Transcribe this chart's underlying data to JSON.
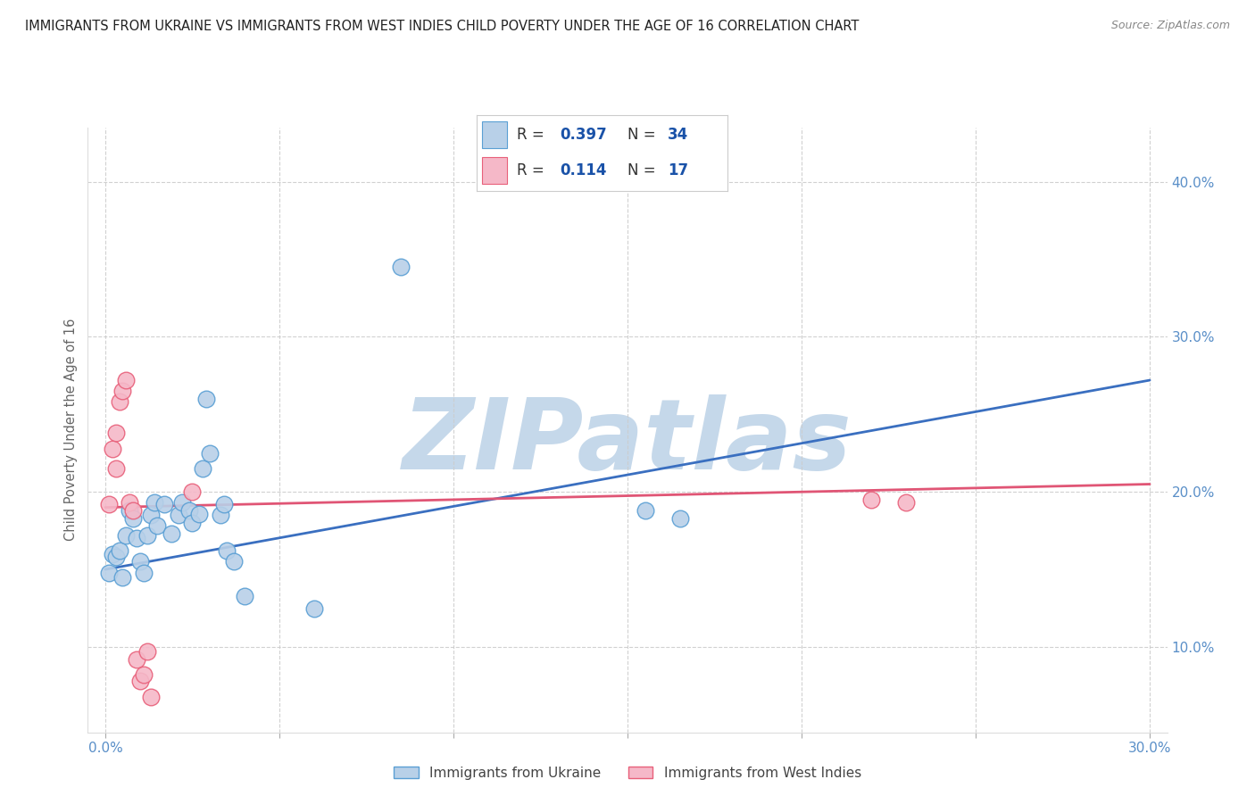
{
  "title": "IMMIGRANTS FROM UKRAINE VS IMMIGRANTS FROM WEST INDIES CHILD POVERTY UNDER THE AGE OF 16 CORRELATION CHART",
  "source": "Source: ZipAtlas.com",
  "ylabel_label": "Child Poverty Under the Age of 16",
  "ukraine_R": 0.397,
  "ukraine_N": 34,
  "westindies_R": 0.114,
  "westindies_N": 17,
  "ukraine_color": "#b8d0e8",
  "westindies_color": "#f5b8c8",
  "ukraine_edge_color": "#5a9fd4",
  "westindies_edge_color": "#e8607a",
  "ukraine_line_color": "#3a6fc0",
  "westindies_line_color": "#e05575",
  "ukraine_scatter": [
    [
      0.001,
      0.148
    ],
    [
      0.002,
      0.16
    ],
    [
      0.003,
      0.158
    ],
    [
      0.004,
      0.162
    ],
    [
      0.005,
      0.145
    ],
    [
      0.006,
      0.172
    ],
    [
      0.007,
      0.188
    ],
    [
      0.008,
      0.183
    ],
    [
      0.009,
      0.17
    ],
    [
      0.01,
      0.155
    ],
    [
      0.011,
      0.148
    ],
    [
      0.012,
      0.172
    ],
    [
      0.013,
      0.185
    ],
    [
      0.014,
      0.193
    ],
    [
      0.015,
      0.178
    ],
    [
      0.017,
      0.192
    ],
    [
      0.019,
      0.173
    ],
    [
      0.021,
      0.185
    ],
    [
      0.022,
      0.193
    ],
    [
      0.024,
      0.188
    ],
    [
      0.025,
      0.18
    ],
    [
      0.027,
      0.186
    ],
    [
      0.028,
      0.215
    ],
    [
      0.029,
      0.26
    ],
    [
      0.03,
      0.225
    ],
    [
      0.033,
      0.185
    ],
    [
      0.034,
      0.192
    ],
    [
      0.035,
      0.162
    ],
    [
      0.037,
      0.155
    ],
    [
      0.04,
      0.133
    ],
    [
      0.06,
      0.125
    ],
    [
      0.085,
      0.345
    ],
    [
      0.155,
      0.188
    ],
    [
      0.165,
      0.183
    ]
  ],
  "westindies_scatter": [
    [
      0.001,
      0.192
    ],
    [
      0.002,
      0.228
    ],
    [
      0.003,
      0.238
    ],
    [
      0.003,
      0.215
    ],
    [
      0.004,
      0.258
    ],
    [
      0.005,
      0.265
    ],
    [
      0.006,
      0.272
    ],
    [
      0.007,
      0.193
    ],
    [
      0.008,
      0.188
    ],
    [
      0.009,
      0.092
    ],
    [
      0.01,
      0.078
    ],
    [
      0.011,
      0.082
    ],
    [
      0.012,
      0.097
    ],
    [
      0.013,
      0.068
    ],
    [
      0.025,
      0.2
    ],
    [
      0.22,
      0.195
    ],
    [
      0.23,
      0.193
    ]
  ],
  "ukraine_line_x": [
    0.0,
    0.3
  ],
  "ukraine_line_y": [
    0.15,
    0.272
  ],
  "westindies_line_x": [
    0.0,
    0.3
  ],
  "westindies_line_y": [
    0.19,
    0.205
  ],
  "xlim": [
    -0.005,
    0.305
  ],
  "ylim": [
    0.045,
    0.435
  ],
  "yticks": [
    0.1,
    0.2,
    0.3,
    0.4
  ],
  "xticks": [
    0.0,
    0.05,
    0.1,
    0.15,
    0.2,
    0.25,
    0.3
  ],
  "watermark": "ZIPatlas",
  "watermark_color": "#c5d8ea",
  "background_color": "#ffffff",
  "grid_color": "#cccccc",
  "title_fontsize": 10.5,
  "axis_color": "#5a8fc8",
  "legend_text_color": "#333333",
  "legend_val_color": "#1a52a8"
}
